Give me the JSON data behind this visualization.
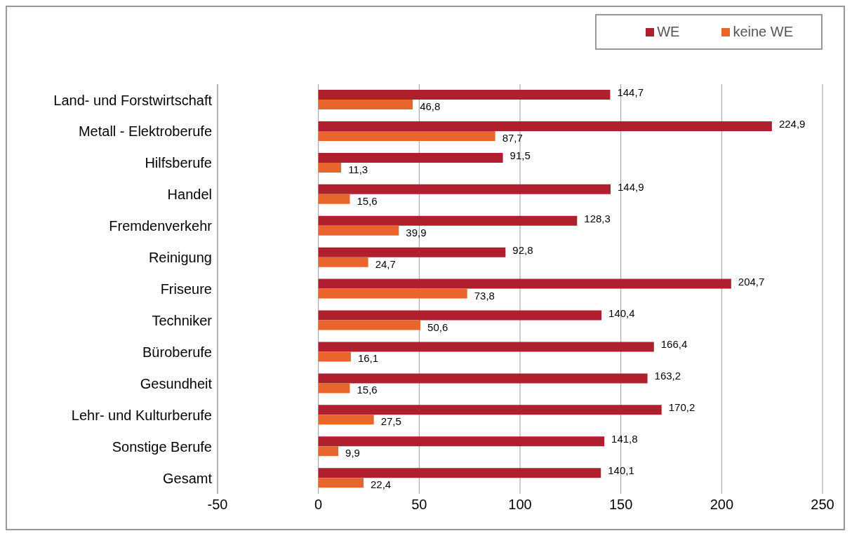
{
  "chart_data": {
    "type": "bar",
    "orientation": "horizontal",
    "categories": [
      "Land- und Forstwirtschaft",
      "Metall - Elektroberufe",
      "Hilfsberufe",
      "Handel",
      "Fremdenverkehr",
      "Reinigung",
      "Friseure",
      "Techniker",
      "Büroberufe",
      "Gesundheit",
      "Lehr- und Kulturberufe",
      "Sonstige Berufe",
      "Gesamt"
    ],
    "series": [
      {
        "name": "WE",
        "color": "#b01f2e",
        "values": [
          144.7,
          224.9,
          91.5,
          144.9,
          128.3,
          92.8,
          204.7,
          140.4,
          166.4,
          163.2,
          170.2,
          141.8,
          140.1
        ],
        "value_labels": [
          "144,7",
          "224,9",
          "91,5",
          "144,9",
          "128,3",
          "92,8",
          "204,7",
          "140,4",
          "166,4",
          "163,2",
          "170,2",
          "141,8",
          "140,1"
        ]
      },
      {
        "name": "keine WE",
        "color": "#e8652c",
        "values": [
          46.8,
          87.7,
          11.3,
          15.6,
          39.9,
          24.7,
          73.8,
          50.6,
          16.1,
          15.6,
          27.5,
          9.9,
          22.4
        ],
        "value_labels": [
          "46,8",
          "87,7",
          "11,3",
          "15,6",
          "39,9",
          "24,7",
          "73,8",
          "50,6",
          "16,1",
          "15,6",
          "27,5",
          "9,9",
          "22,4"
        ]
      }
    ],
    "xlim": [
      -50,
      250
    ],
    "xticks": [
      -50,
      0,
      50,
      100,
      150,
      200,
      250
    ],
    "grid": "x",
    "legend": "top right"
  }
}
